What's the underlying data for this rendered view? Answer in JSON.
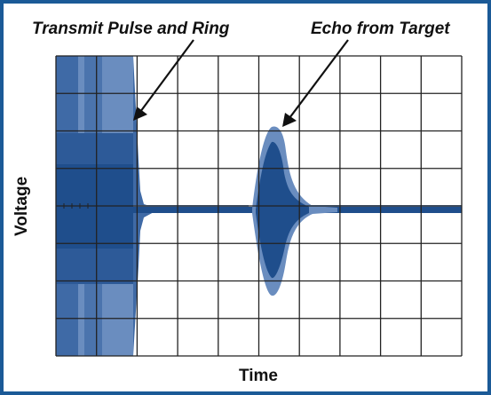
{
  "annotations": {
    "transmit_label": "Transmit Pulse and Ring",
    "echo_label": "Echo from Target"
  },
  "axes": {
    "x_label": "Time",
    "y_label": "Voltage"
  },
  "colors": {
    "border": "#1b5a97",
    "signal": "#1f4e8c",
    "signal_light": "#6a8dbf",
    "grid": "#222222",
    "text": "#111111"
  }
}
